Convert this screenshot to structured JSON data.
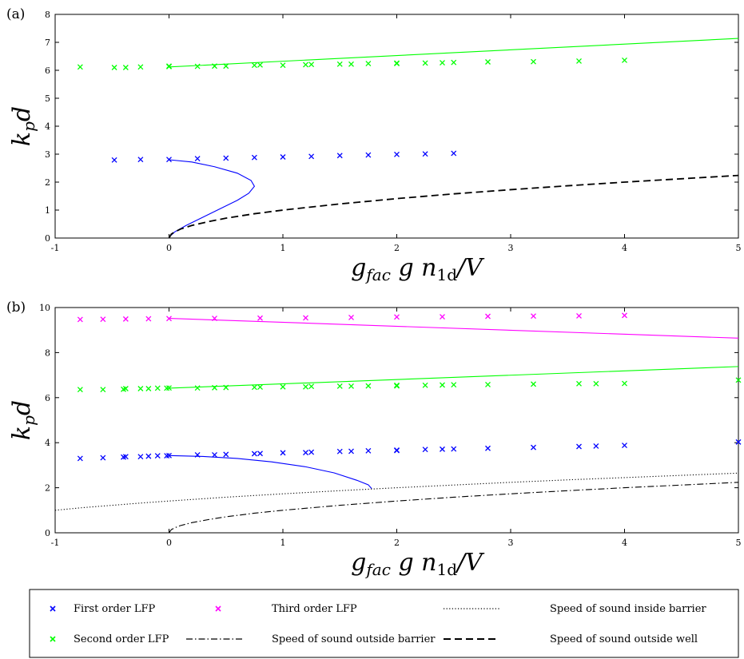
{
  "chart_data": [
    {
      "type": "scatter",
      "panel_label": "(a)",
      "xlabel": "g_fac g n_1d/V",
      "ylabel": "k_p d",
      "xlim": [
        -1,
        5
      ],
      "ylim": [
        0,
        8
      ],
      "xticks": [
        -1,
        0,
        1,
        2,
        3,
        4,
        5
      ],
      "yticks": [
        0,
        1,
        2,
        3,
        4,
        5,
        6,
        7,
        8
      ],
      "grid": false,
      "series": [
        {
          "name": "First order LFP",
          "kind": "markers",
          "color": "#0000ff",
          "points": [
            [
              -0.48,
              2.79
            ],
            [
              -0.25,
              2.81
            ],
            [
              0,
              2.81
            ],
            [
              0.25,
              2.84
            ],
            [
              0.5,
              2.86
            ],
            [
              0.75,
              2.88
            ],
            [
              1,
              2.9
            ],
            [
              1.25,
              2.92
            ],
            [
              1.5,
              2.95
            ],
            [
              1.75,
              2.97
            ],
            [
              2,
              2.99
            ],
            [
              2.25,
              3.01
            ],
            [
              2.5,
              3.03
            ]
          ]
        },
        {
          "name": "Second order LFP",
          "kind": "markers",
          "color": "#00ff00",
          "points": [
            [
              -0.78,
              6.12
            ],
            [
              -0.48,
              6.1
            ],
            [
              -0.38,
              6.1
            ],
            [
              -0.25,
              6.12
            ],
            [
              0,
              6.13
            ],
            [
              0,
              6.15
            ],
            [
              0.25,
              6.14
            ],
            [
              0.4,
              6.15
            ],
            [
              0.5,
              6.15
            ],
            [
              0.75,
              6.18
            ],
            [
              0.8,
              6.19
            ],
            [
              1,
              6.18
            ],
            [
              1.2,
              6.2
            ],
            [
              1.25,
              6.21
            ],
            [
              1.5,
              6.22
            ],
            [
              1.6,
              6.22
            ],
            [
              1.75,
              6.24
            ],
            [
              2,
              6.24
            ],
            [
              2,
              6.26
            ],
            [
              2.25,
              6.26
            ],
            [
              2.4,
              6.27
            ],
            [
              2.5,
              6.28
            ],
            [
              2.8,
              6.3
            ],
            [
              3.2,
              6.31
            ],
            [
              3.6,
              6.33
            ],
            [
              4,
              6.36
            ]
          ]
        },
        {
          "name": "Second order LFP (theory)",
          "kind": "curve",
          "color": "#00ff00",
          "points": [
            [
              0,
              6.12
            ],
            [
              5,
              7.14
            ]
          ]
        },
        {
          "name": "First order LFP (theory)",
          "kind": "curve",
          "color": "#0000ff",
          "points": [
            [
              0,
              2.8
            ],
            [
              0.2,
              2.72
            ],
            [
              0.4,
              2.55
            ],
            [
              0.6,
              2.32
            ],
            [
              0.72,
              2.06
            ],
            [
              0.75,
              1.85
            ],
            [
              0.7,
              1.6
            ],
            [
              0.6,
              1.35
            ],
            [
              0.45,
              1.05
            ],
            [
              0.3,
              0.75
            ],
            [
              0.15,
              0.45
            ],
            [
              0.05,
              0.22
            ],
            [
              0.01,
              0.07
            ],
            [
              0,
              0
            ]
          ]
        },
        {
          "name": "Speed of sound outside well",
          "kind": "dashed",
          "color": "#000000",
          "points": [
            [
              0,
              0
            ],
            [
              0.02,
              0.14
            ],
            [
              0.05,
              0.22
            ],
            [
              0.1,
              0.32
            ],
            [
              0.2,
              0.45
            ],
            [
              0.35,
              0.59
            ],
            [
              0.5,
              0.71
            ],
            [
              0.75,
              0.87
            ],
            [
              1,
              1.0
            ],
            [
              1.5,
              1.22
            ],
            [
              2,
              1.41
            ],
            [
              2.5,
              1.58
            ],
            [
              3,
              1.73
            ],
            [
              3.5,
              1.87
            ],
            [
              4,
              2.0
            ],
            [
              4.5,
              2.12
            ],
            [
              5,
              2.24
            ]
          ]
        }
      ]
    },
    {
      "type": "scatter",
      "panel_label": "(b)",
      "xlabel": "g_fac g n_1d/V",
      "ylabel": "k_p d",
      "xlim": [
        -1,
        5
      ],
      "ylim": [
        0,
        10
      ],
      "xticks": [
        -1,
        0,
        1,
        2,
        3,
        4,
        5
      ],
      "yticks": [
        0,
        2,
        4,
        6,
        8,
        10
      ],
      "grid": false,
      "series": [
        {
          "name": "First order LFP",
          "kind": "markers",
          "color": "#0000ff",
          "points": [
            [
              -0.78,
              3.3
            ],
            [
              -0.58,
              3.33
            ],
            [
              -0.4,
              3.36
            ],
            [
              -0.38,
              3.38
            ],
            [
              -0.25,
              3.38
            ],
            [
              -0.18,
              3.4
            ],
            [
              -0.1,
              3.42
            ],
            [
              -0.02,
              3.42
            ],
            [
              0,
              3.43
            ],
            [
              0.25,
              3.46
            ],
            [
              0.4,
              3.46
            ],
            [
              0.5,
              3.48
            ],
            [
              0.75,
              3.51
            ],
            [
              0.8,
              3.52
            ],
            [
              1,
              3.55
            ],
            [
              1.2,
              3.56
            ],
            [
              1.25,
              3.58
            ],
            [
              1.5,
              3.61
            ],
            [
              1.6,
              3.62
            ],
            [
              1.75,
              3.64
            ],
            [
              2,
              3.65
            ],
            [
              2,
              3.67
            ],
            [
              2.25,
              3.7
            ],
            [
              2.4,
              3.71
            ],
            [
              2.5,
              3.72
            ],
            [
              2.8,
              3.75
            ],
            [
              3.2,
              3.79
            ],
            [
              3.6,
              3.83
            ],
            [
              3.75,
              3.85
            ],
            [
              4,
              3.88
            ],
            [
              5,
              4.03
            ]
          ]
        },
        {
          "name": "Second order LFP",
          "kind": "markers",
          "color": "#00ff00",
          "points": [
            [
              -0.78,
              6.36
            ],
            [
              -0.58,
              6.36
            ],
            [
              -0.4,
              6.37
            ],
            [
              -0.38,
              6.4
            ],
            [
              -0.25,
              6.4
            ],
            [
              -0.18,
              6.4
            ],
            [
              -0.1,
              6.42
            ],
            [
              -0.02,
              6.42
            ],
            [
              0,
              6.43
            ],
            [
              0.25,
              6.43
            ],
            [
              0.4,
              6.44
            ],
            [
              0.5,
              6.45
            ],
            [
              0.75,
              6.46
            ],
            [
              0.8,
              6.47
            ],
            [
              1,
              6.48
            ],
            [
              1.2,
              6.48
            ],
            [
              1.25,
              6.5
            ],
            [
              1.5,
              6.51
            ],
            [
              1.6,
              6.51
            ],
            [
              1.75,
              6.52
            ],
            [
              2,
              6.52
            ],
            [
              2,
              6.55
            ],
            [
              2.25,
              6.55
            ],
            [
              2.4,
              6.56
            ],
            [
              2.5,
              6.57
            ],
            [
              2.8,
              6.58
            ],
            [
              3.2,
              6.6
            ],
            [
              3.6,
              6.62
            ],
            [
              3.75,
              6.62
            ],
            [
              4,
              6.63
            ],
            [
              5,
              6.78
            ]
          ]
        },
        {
          "name": "Third order LFP",
          "kind": "markers",
          "color": "#ff00ff",
          "points": [
            [
              -0.78,
              9.47
            ],
            [
              -0.58,
              9.48
            ],
            [
              -0.38,
              9.49
            ],
            [
              -0.18,
              9.5
            ],
            [
              0,
              9.51
            ],
            [
              0.4,
              9.52
            ],
            [
              0.8,
              9.53
            ],
            [
              1.2,
              9.54
            ],
            [
              1.6,
              9.56
            ],
            [
              2,
              9.58
            ],
            [
              2.4,
              9.59
            ],
            [
              2.8,
              9.61
            ],
            [
              3.2,
              9.62
            ],
            [
              3.6,
              9.63
            ],
            [
              4,
              9.65
            ]
          ]
        },
        {
          "name": "Third order LFP (theory)",
          "kind": "curve",
          "color": "#ff00ff",
          "points": [
            [
              0,
              9.52
            ],
            [
              5,
              8.64
            ]
          ]
        },
        {
          "name": "Second order LFP (theory)",
          "kind": "curve",
          "color": "#00ff00",
          "points": [
            [
              0,
              6.42
            ],
            [
              5,
              7.38
            ]
          ]
        },
        {
          "name": "First order LFP (theory)",
          "kind": "curve",
          "color": "#0000ff",
          "points": [
            [
              0,
              3.43
            ],
            [
              0.3,
              3.39
            ],
            [
              0.6,
              3.3
            ],
            [
              0.9,
              3.15
            ],
            [
              1.2,
              2.93
            ],
            [
              1.45,
              2.66
            ],
            [
              1.65,
              2.33
            ],
            [
              1.75,
              2.13
            ],
            [
              1.78,
              1.96
            ]
          ]
        },
        {
          "name": "Speed of sound inside barrier",
          "kind": "dotted",
          "color": "#000000",
          "points": [
            [
              -1,
              1.0
            ],
            [
              -0.75,
              1.12
            ],
            [
              -0.5,
              1.22
            ],
            [
              -0.25,
              1.32
            ],
            [
              0,
              1.41
            ],
            [
              0.5,
              1.58
            ],
            [
              1,
              1.73
            ],
            [
              1.5,
              1.87
            ],
            [
              2,
              2.0
            ],
            [
              2.5,
              2.12
            ],
            [
              3,
              2.24
            ],
            [
              3.5,
              2.35
            ],
            [
              4,
              2.45
            ],
            [
              4.5,
              2.55
            ],
            [
              5,
              2.65
            ]
          ]
        },
        {
          "name": "Speed of sound outside barrier",
          "kind": "dashdot",
          "color": "#000000",
          "points": [
            [
              0,
              0
            ],
            [
              0.02,
              0.14
            ],
            [
              0.05,
              0.22
            ],
            [
              0.1,
              0.32
            ],
            [
              0.2,
              0.45
            ],
            [
              0.35,
              0.59
            ],
            [
              0.5,
              0.71
            ],
            [
              0.75,
              0.87
            ],
            [
              1,
              1.0
            ],
            [
              1.5,
              1.22
            ],
            [
              2,
              1.41
            ],
            [
              2.5,
              1.58
            ],
            [
              3,
              1.73
            ],
            [
              3.5,
              1.87
            ],
            [
              4,
              2.0
            ],
            [
              4.5,
              2.12
            ],
            [
              5,
              2.24
            ]
          ]
        }
      ]
    }
  ],
  "legend": {
    "placement": "bottom",
    "items": [
      {
        "label": "First order LFP",
        "kind": "marker",
        "color": "#0000ff"
      },
      {
        "label": "Third order LFP",
        "kind": "marker",
        "color": "#ff00ff"
      },
      {
        "label": "Speed of sound inside barrier",
        "kind": "dotted",
        "color": "#000000"
      },
      {
        "label": "Second order LFP",
        "kind": "marker",
        "color": "#00ff00"
      },
      {
        "label": "Speed of sound outside barrier",
        "kind": "dashdot",
        "color": "#000000"
      },
      {
        "label": "Speed of sound outside well",
        "kind": "dashed",
        "color": "#000000"
      }
    ]
  }
}
